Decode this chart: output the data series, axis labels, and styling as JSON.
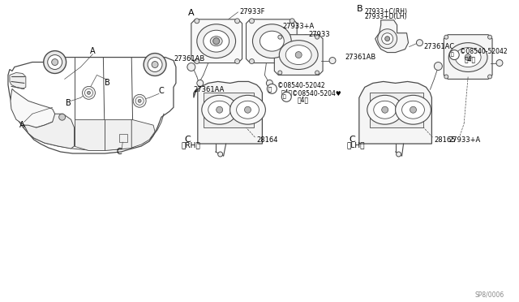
{
  "bg_color": "#ffffff",
  "line_color": "#4a4a4a",
  "fig_width": 6.4,
  "fig_height": 3.72,
  "dpi": 100,
  "watermark": "SP8/0006",
  "section_A_label": "A",
  "section_B_label": "B",
  "section_CRH_label": "C",
  "section_CRH_sub": "（RH）",
  "section_CLH_label": "C",
  "section_CLH_sub": "（LH）",
  "part_27933F": "27933F",
  "part_27933": "27933",
  "part_27361AA": "27361AA",
  "part_S1": "©08540-52042",
  "part_S1b": "（4）",
  "part_27933C": "27933+C(RH)",
  "part_27933D": "27933+D(LH)",
  "part_27361AC": "27361AC",
  "part_28164": "28164",
  "part_S2": "©08540-5204♥",
  "part_S2b": "（4）",
  "part_27361AB_L": "27361AB",
  "part_27933A_L": "27933+A",
  "part_28165": "28165",
  "part_27933A_R": "27933+A",
  "part_S3": "©08540-52042",
  "part_S3b": "（4）",
  "part_27361AB_R": "27361AB"
}
